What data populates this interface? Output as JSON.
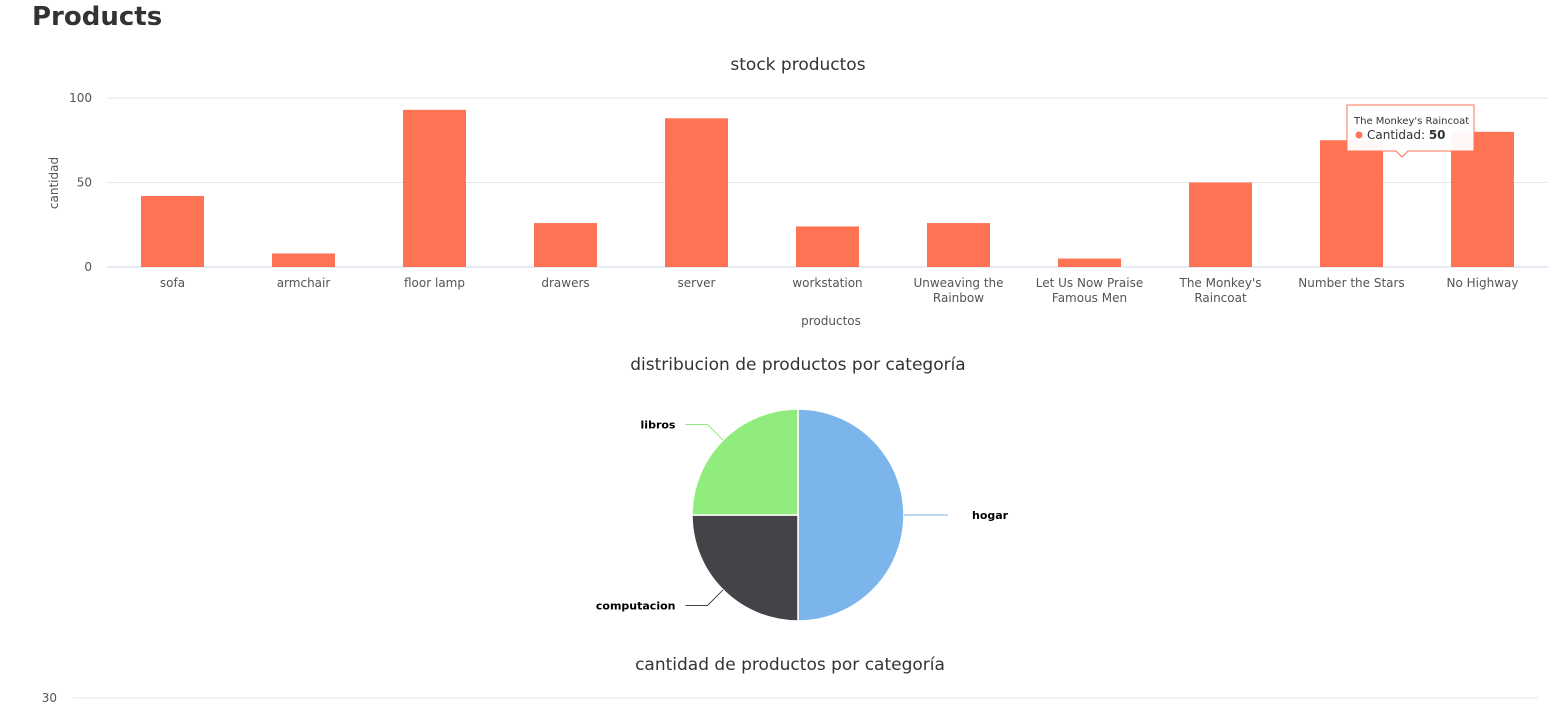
{
  "page": {
    "title": "Products"
  },
  "chart_data": [
    {
      "type": "bar",
      "title": "stock productos",
      "xlabel": "productos",
      "ylabel": "cantidad",
      "ylim": [
        0,
        100
      ],
      "yticks": [
        0,
        50,
        100
      ],
      "grid": true,
      "color": "#ff7355",
      "categories": [
        "sofa",
        "armchair",
        "floor lamp",
        "drawers",
        "server",
        "workstation",
        "Unweaving the Rainbow",
        "Let Us Now Praise Famous Men",
        "The Monkey's Raincoat",
        "Number the Stars",
        "No Highway"
      ],
      "category_lines": [
        [
          "sofa"
        ],
        [
          "armchair"
        ],
        [
          "floor lamp"
        ],
        [
          "drawers"
        ],
        [
          "server"
        ],
        [
          "workstation"
        ],
        [
          "Unweaving the",
          "Rainbow"
        ],
        [
          "Let Us Now Praise",
          "Famous Men"
        ],
        [
          "The Monkey's",
          "Raincoat"
        ],
        [
          "Number the Stars"
        ],
        [
          "No Highway"
        ]
      ],
      "series": [
        {
          "name": "Cantidad",
          "values": [
            42,
            8,
            93,
            26,
            88,
            24,
            26,
            5,
            50,
            75,
            80
          ]
        }
      ],
      "tooltip": {
        "category": "The Monkey's Raincoat",
        "label": "Cantidad",
        "value": 50
      }
    },
    {
      "type": "pie",
      "title": "distribucion de productos por categoría",
      "slices": [
        {
          "label": "hogar",
          "value": 6,
          "color": "#7cb5ec"
        },
        {
          "label": "computacion",
          "value": 3,
          "color": "#434348"
        },
        {
          "label": "libros",
          "value": 3,
          "color": "#90ed7d"
        }
      ]
    },
    {
      "type": "bar",
      "title": "cantidad de productos por categoría",
      "yticks": [
        30
      ],
      "grid": true
    }
  ]
}
